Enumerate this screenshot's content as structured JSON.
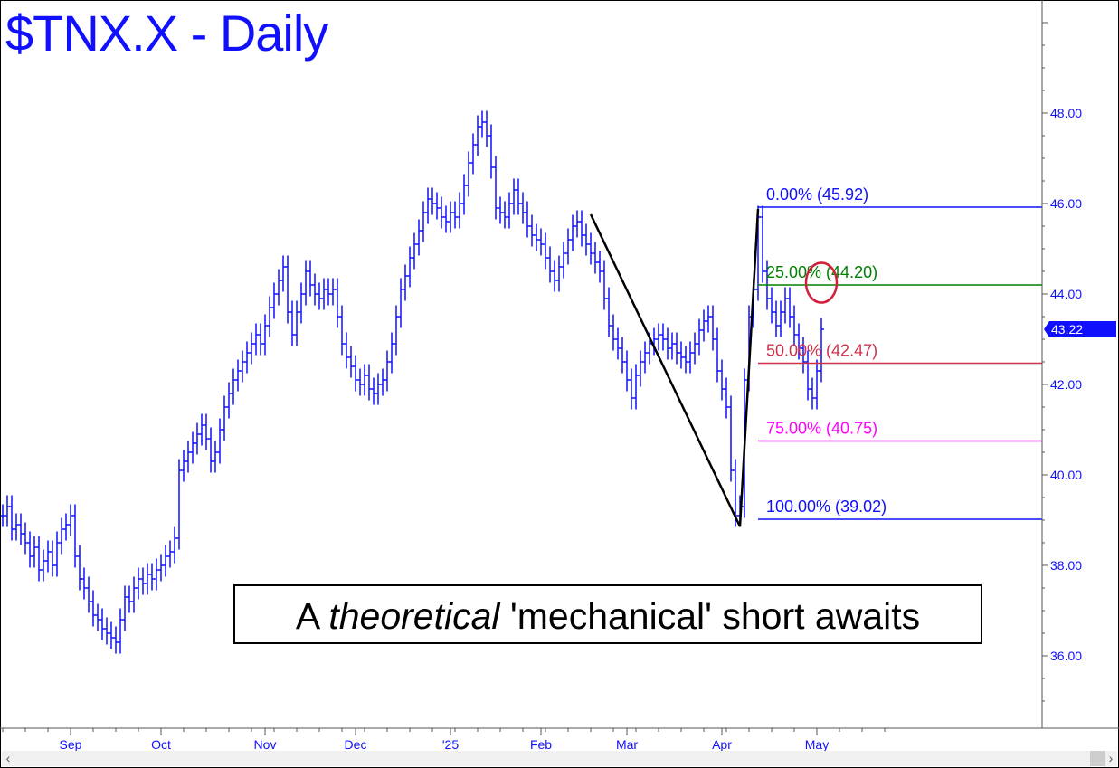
{
  "title": "$TNX.X - Daily",
  "caption": {
    "before": "A ",
    "italic": "theoretical",
    "after": " 'mechanical' short awaits"
  },
  "colors": {
    "bars": "#1010ff",
    "axis_text": "#1010ff",
    "fib_0": "#1010ff",
    "fib_25": "#008000",
    "fib_50": "#d0304a",
    "fib_75": "#ff00ff",
    "fib_100": "#1010ff",
    "swing_lines": "#000000",
    "circle": "#d0203a",
    "last_price_tag": "#1010ff"
  },
  "scrollbar": {
    "left_icon": "chevron-left",
    "right_icon": "chevron-right",
    "left_glyph": "‹",
    "right_glyph": "›"
  },
  "chart_data": {
    "type": "ohlc-bar",
    "symbol": "$TNX.X",
    "period": "Daily",
    "first_date": "2024-08-12",
    "closes": [
      39.1,
      39.3,
      38.8,
      38.9,
      38.7,
      38.5,
      38.2,
      38.4,
      37.9,
      38.1,
      38.3,
      38.0,
      38.5,
      38.8,
      38.9,
      39.1,
      38.2,
      37.7,
      37.5,
      37.2,
      36.9,
      36.8,
      36.6,
      36.5,
      36.4,
      36.3,
      36.8,
      37.3,
      37.2,
      37.5,
      37.7,
      37.6,
      37.8,
      37.7,
      37.9,
      38.0,
      38.2,
      38.3,
      38.6,
      40.1,
      40.3,
      40.5,
      40.7,
      40.9,
      41.1,
      40.8,
      40.3,
      40.5,
      41.0,
      41.5,
      41.8,
      42.1,
      42.3,
      42.5,
      42.7,
      42.9,
      43.1,
      42.9,
      43.3,
      43.7,
      44.0,
      44.3,
      44.6,
      43.6,
      43.1,
      43.6,
      44.0,
      44.5,
      44.2,
      44.0,
      43.9,
      44.1,
      44.0,
      44.1,
      43.5,
      42.9,
      42.6,
      42.4,
      42.1,
      42.0,
      42.2,
      41.9,
      41.8,
      42.0,
      42.1,
      42.5,
      42.9,
      43.5,
      44.1,
      44.4,
      44.8,
      45.1,
      45.4,
      45.8,
      46.1,
      46.0,
      45.9,
      45.7,
      45.6,
      45.8,
      45.7,
      46.0,
      46.4,
      46.9,
      47.3,
      47.7,
      47.8,
      47.5,
      46.8,
      45.9,
      45.8,
      45.7,
      46.0,
      46.3,
      46.0,
      45.8,
      45.5,
      45.3,
      45.2,
      45.1,
      44.8,
      44.5,
      44.3,
      44.6,
      44.9,
      45.2,
      45.5,
      45.6,
      45.3,
      45.1,
      44.9,
      44.7,
      44.5,
      43.9,
      43.3,
      43.0,
      42.8,
      42.5,
      42.1,
      41.7,
      42.2,
      42.5,
      42.7,
      42.9,
      43.0,
      43.1,
      43.0,
      42.8,
      42.9,
      42.7,
      42.6,
      42.5,
      42.7,
      42.9,
      43.2,
      43.4,
      43.5,
      43.0,
      42.3,
      41.9,
      41.5,
      40.1,
      39.1,
      39.3,
      42.1,
      43.5,
      44.1,
      45.7,
      44.5,
      43.9,
      43.6,
      43.3,
      43.6,
      43.9,
      43.5,
      43.1,
      42.8,
      42.5,
      41.9,
      41.7,
      42.3,
      43.22
    ],
    "last_price": "43.22",
    "y_ticks": [
      "36.00",
      "38.00",
      "40.00",
      "42.00",
      "44.00",
      "46.00",
      "48.00"
    ],
    "ylim": [
      34.4,
      50.5
    ],
    "x_ticks": [
      {
        "label": "Sep",
        "date": "2024-09-03"
      },
      {
        "label": "Oct",
        "date": "2024-10-01"
      },
      {
        "label": "Nov",
        "date": "2024-11-01"
      },
      {
        "label": "Dec",
        "date": "2024-12-02"
      },
      {
        "label": "'25",
        "date": "2025-01-02"
      },
      {
        "label": "Feb",
        "date": "2025-02-03"
      },
      {
        "label": "Mar",
        "date": "2025-03-03"
      },
      {
        "label": "Apr",
        "date": "2025-04-01"
      },
      {
        "label": "May",
        "date": "2025-05-01"
      }
    ],
    "fib_levels": [
      {
        "label": "0.00% (45.92)",
        "price": 45.92,
        "color_key": "fib_0"
      },
      {
        "label": "25.00% (44.20)",
        "price": 44.2,
        "color_key": "fib_25"
      },
      {
        "label": "50.00% (42.47)",
        "price": 42.47,
        "color_key": "fib_50"
      },
      {
        "label": "75.00% (40.75)",
        "price": 40.75,
        "color_key": "fib_75"
      },
      {
        "label": "100.00% (39.02)",
        "price": 39.02,
        "color_key": "fib_100"
      }
    ],
    "fib_start_date": "2025-04-11",
    "swing_lines": [
      {
        "date": "2025-02-19",
        "price": 45.76
      },
      {
        "date": "2025-04-07",
        "price": 38.86
      },
      {
        "date": "2025-04-11",
        "price": 45.88
      }
    ],
    "circle": {
      "date": "2025-05-02",
      "price": 44.25
    }
  }
}
